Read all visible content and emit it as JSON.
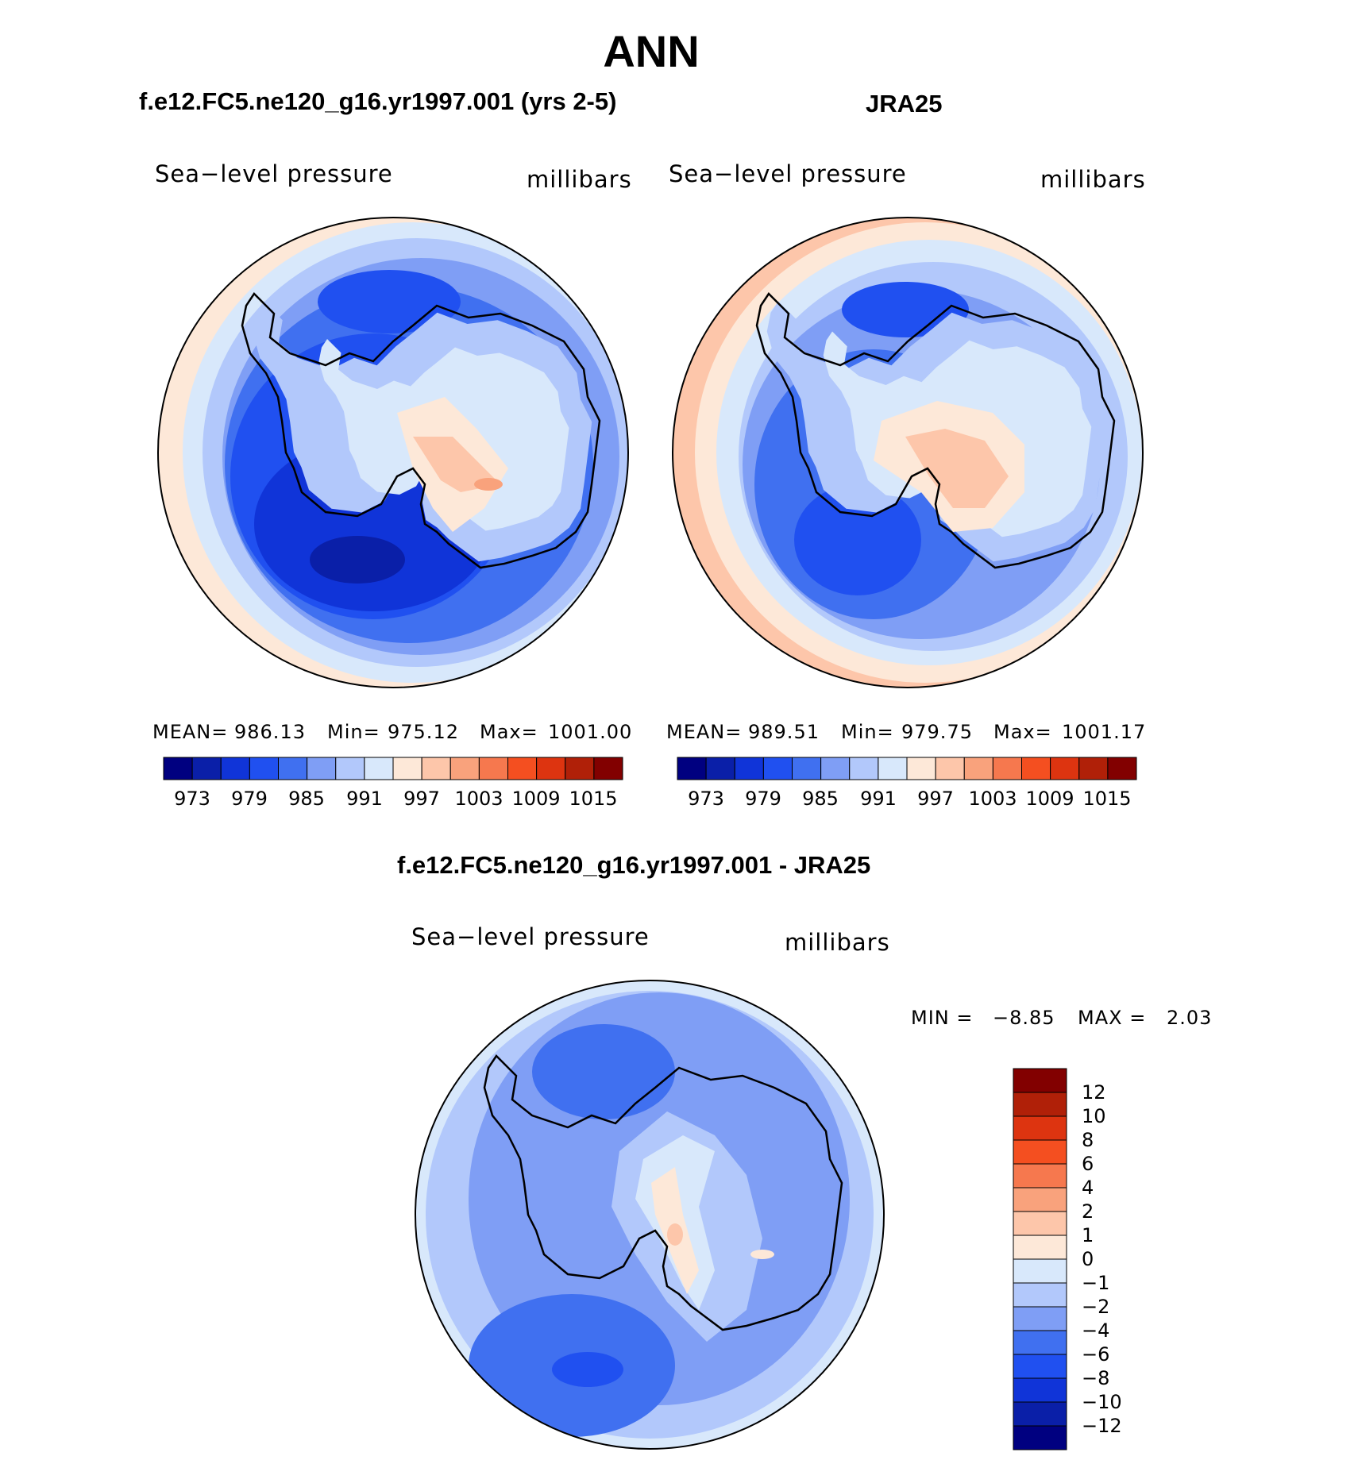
{
  "title": "ANN",
  "panels": [
    {
      "id": "model",
      "case_title": "f.e12.FC5.ne120_g16.yr1997.001 (yrs 2-5)",
      "variable": "Sea−level pressure",
      "units": "millibars",
      "stats": {
        "mean_label": "MEAN=",
        "mean": "986.13",
        "min_label": "Min=",
        "min": "975.12",
        "max_label": "Max=",
        "max": "1001.00"
      },
      "colorbar": {
        "ticks": [
          "973",
          "979",
          "985",
          "991",
          "997",
          "1003",
          "1009",
          "1015"
        ],
        "colors": [
          "#000080",
          "#0a1fa8",
          "#1034d8",
          "#2050f0",
          "#4070f0",
          "#7f9ef5",
          "#b2c8fb",
          "#d8e8fb",
          "#fde8d8",
          "#fdc6aa",
          "#f9a27c",
          "#f6784e",
          "#f44f20",
          "#dd3410",
          "#b02008",
          "#820000"
        ]
      }
    },
    {
      "id": "obs",
      "case_title": "JRA25",
      "variable": "Sea−level pressure",
      "units": "millibars",
      "stats": {
        "mean_label": "MEAN=",
        "mean": "989.51",
        "min_label": "Min=",
        "min": "979.75",
        "max_label": "Max=",
        "max": "1001.17"
      },
      "colorbar": {
        "ticks": [
          "973",
          "979",
          "985",
          "991",
          "997",
          "1003",
          "1009",
          "1015"
        ],
        "colors": [
          "#000080",
          "#0a1fa8",
          "#1034d8",
          "#2050f0",
          "#4070f0",
          "#7f9ef5",
          "#b2c8fb",
          "#d8e8fb",
          "#fde8d8",
          "#fdc6aa",
          "#f9a27c",
          "#f6784e",
          "#f44f20",
          "#dd3410",
          "#b02008",
          "#820000"
        ]
      }
    },
    {
      "id": "diff",
      "case_title": "f.e12.FC5.ne120_g16.yr1997.001 - JRA25",
      "variable": "Sea−level pressure",
      "units": "millibars",
      "stats": {
        "min_label": "MIN =",
        "min": "−8.85",
        "max_label": "MAX =",
        "max": "2.03"
      },
      "colorbar": {
        "ticks": [
          "12",
          "10",
          "8",
          "6",
          "4",
          "2",
          "1",
          "0",
          "−1",
          "−2",
          "−4",
          "−6",
          "−8",
          "−10",
          "−12"
        ],
        "colors": [
          "#820000",
          "#b02008",
          "#dd3410",
          "#f44f20",
          "#f6784e",
          "#f9a27c",
          "#fdc6aa",
          "#fde8d8",
          "#d8e8fb",
          "#b2c8fb",
          "#7f9ef5",
          "#4070f0",
          "#2050f0",
          "#1034d8",
          "#0a1fa8",
          "#000080"
        ]
      }
    }
  ]
}
